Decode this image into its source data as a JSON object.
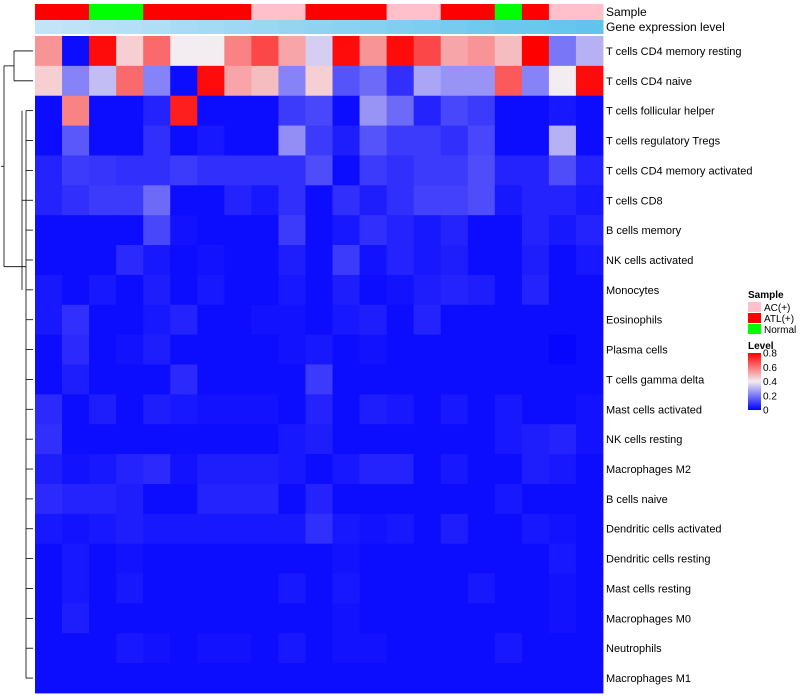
{
  "chart_data": {
    "type": "heatmap",
    "title": "",
    "annotation_tracks": [
      {
        "label": "Sample",
        "values": [
          "ATL(+)",
          "ATL(+)",
          "Normal",
          "Normal",
          "ATL(+)",
          "ATL(+)",
          "ATL(+)",
          "ATL(+)",
          "AC(+)",
          "AC(+)",
          "ATL(+)",
          "ATL(+)",
          "ATL(+)",
          "AC(+)",
          "AC(+)",
          "ATL(+)",
          "ATL(+)",
          "Normal",
          "ATL(+)",
          "AC(+)",
          "AC(+)"
        ]
      },
      {
        "label": "Gene expression level",
        "values": [
          0.05,
          0.1,
          0.15,
          0.2,
          0.25,
          0.3,
          0.35,
          0.4,
          0.45,
          0.5,
          0.55,
          0.6,
          0.65,
          0.7,
          0.75,
          0.8,
          0.85,
          0.9,
          0.92,
          0.95,
          1.0
        ]
      }
    ],
    "rows": [
      "T cells CD4 memory resting",
      "T cells CD4 naive",
      "T cells follicular helper",
      "T cells regulatory  Tregs",
      "T cells CD4 memory activated",
      "T cells CD8",
      "B cells memory",
      "NK cells activated",
      "Monocytes",
      "Eosinophils",
      "Plasma cells",
      "T cells gamma delta",
      "Mast cells activated",
      "NK cells resting",
      "Macrophages M2",
      "B cells naive",
      "Dendritic cells activated",
      "Dendritic cells resting",
      "Mast cells resting",
      "Macrophages M0",
      "Neutrophils",
      "Macrophages M1"
    ],
    "values": [
      [
        0.55,
        0.02,
        0.78,
        0.45,
        0.62,
        0.4,
        0.4,
        0.58,
        0.68,
        0.52,
        0.35,
        0.78,
        0.55,
        0.78,
        0.68,
        0.52,
        0.55,
        0.48,
        0.8,
        0.2,
        0.3
      ],
      [
        0.45,
        0.22,
        0.32,
        0.62,
        0.22,
        0.02,
        0.78,
        0.52,
        0.48,
        0.22,
        0.45,
        0.14,
        0.18,
        0.08,
        0.28,
        0.25,
        0.25,
        0.65,
        0.22,
        0.4,
        0.78
      ],
      [
        0.02,
        0.58,
        0.02,
        0.02,
        0.06,
        0.75,
        0.02,
        0.02,
        0.02,
        0.1,
        0.12,
        0.02,
        0.25,
        0.18,
        0.06,
        0.12,
        0.1,
        0.02,
        0.02,
        0.04,
        0.02
      ],
      [
        0.02,
        0.15,
        0.02,
        0.02,
        0.08,
        0.02,
        0.04,
        0.02,
        0.02,
        0.24,
        0.1,
        0.05,
        0.14,
        0.1,
        0.1,
        0.08,
        0.12,
        0.02,
        0.02,
        0.3,
        0.02
      ],
      [
        0.06,
        0.1,
        0.09,
        0.08,
        0.08,
        0.1,
        0.08,
        0.08,
        0.08,
        0.08,
        0.13,
        0.02,
        0.1,
        0.08,
        0.1,
        0.1,
        0.13,
        0.06,
        0.06,
        0.13,
        0.06
      ],
      [
        0.06,
        0.08,
        0.1,
        0.1,
        0.18,
        0.02,
        0.02,
        0.06,
        0.04,
        0.08,
        0.02,
        0.08,
        0.05,
        0.08,
        0.11,
        0.11,
        0.13,
        0.04,
        0.06,
        0.06,
        0.04
      ],
      [
        0.02,
        0.02,
        0.02,
        0.02,
        0.12,
        0.03,
        0.02,
        0.02,
        0.02,
        0.1,
        0.02,
        0.04,
        0.08,
        0.06,
        0.04,
        0.06,
        0.02,
        0.02,
        0.06,
        0.04,
        0.06
      ],
      [
        0.02,
        0.02,
        0.02,
        0.07,
        0.04,
        0.02,
        0.03,
        0.02,
        0.02,
        0.05,
        0.02,
        0.1,
        0.03,
        0.06,
        0.04,
        0.05,
        0.02,
        0.02,
        0.05,
        0.02,
        0.04
      ],
      [
        0.04,
        0.02,
        0.04,
        0.02,
        0.05,
        0.02,
        0.04,
        0.02,
        0.02,
        0.04,
        0.02,
        0.05,
        0.02,
        0.03,
        0.05,
        0.06,
        0.05,
        0.02,
        0.06,
        0.02,
        0.02
      ],
      [
        0.04,
        0.08,
        0.02,
        0.02,
        0.04,
        0.06,
        0.02,
        0.02,
        0.03,
        0.03,
        0.02,
        0.04,
        0.05,
        0.02,
        0.06,
        0.02,
        0.02,
        0.02,
        0.02,
        0.02,
        0.02
      ],
      [
        0.02,
        0.07,
        0.02,
        0.03,
        0.05,
        0.02,
        0.02,
        0.02,
        0.02,
        0.03,
        0.04,
        0.02,
        0.03,
        0.02,
        0.02,
        0.02,
        0.02,
        0.02,
        0.02,
        0.01,
        0.02
      ],
      [
        0.02,
        0.05,
        0.02,
        0.02,
        0.02,
        0.07,
        0.02,
        0.02,
        0.02,
        0.02,
        0.1,
        0.02,
        0.02,
        0.02,
        0.02,
        0.02,
        0.02,
        0.02,
        0.02,
        0.02,
        0.02
      ],
      [
        0.07,
        0.02,
        0.05,
        0.02,
        0.05,
        0.04,
        0.03,
        0.03,
        0.03,
        0.02,
        0.06,
        0.02,
        0.05,
        0.04,
        0.02,
        0.04,
        0.02,
        0.04,
        0.02,
        0.02,
        0.03
      ],
      [
        0.08,
        0.02,
        0.02,
        0.02,
        0.02,
        0.02,
        0.02,
        0.02,
        0.02,
        0.04,
        0.05,
        0.02,
        0.02,
        0.02,
        0.02,
        0.02,
        0.02,
        0.04,
        0.05,
        0.06,
        0.03
      ],
      [
        0.05,
        0.03,
        0.04,
        0.06,
        0.07,
        0.03,
        0.05,
        0.05,
        0.05,
        0.04,
        0.02,
        0.04,
        0.06,
        0.06,
        0.02,
        0.04,
        0.02,
        0.02,
        0.05,
        0.04,
        0.02
      ],
      [
        0.07,
        0.06,
        0.06,
        0.05,
        0.02,
        0.02,
        0.06,
        0.06,
        0.06,
        0.02,
        0.06,
        0.02,
        0.02,
        0.02,
        0.02,
        0.02,
        0.02,
        0.04,
        0.02,
        0.02,
        0.02
      ],
      [
        0.04,
        0.03,
        0.04,
        0.05,
        0.04,
        0.04,
        0.04,
        0.04,
        0.04,
        0.04,
        0.08,
        0.04,
        0.03,
        0.04,
        0.02,
        0.05,
        0.02,
        0.02,
        0.04,
        0.03,
        0.02
      ],
      [
        0.02,
        0.04,
        0.02,
        0.03,
        0.02,
        0.02,
        0.02,
        0.02,
        0.02,
        0.02,
        0.02,
        0.03,
        0.02,
        0.02,
        0.02,
        0.02,
        0.02,
        0.02,
        0.02,
        0.04,
        0.02
      ],
      [
        0.02,
        0.04,
        0.02,
        0.04,
        0.02,
        0.02,
        0.02,
        0.02,
        0.02,
        0.04,
        0.02,
        0.04,
        0.02,
        0.02,
        0.02,
        0.02,
        0.04,
        0.02,
        0.02,
        0.03,
        0.02
      ],
      [
        0.02,
        0.05,
        0.02,
        0.02,
        0.02,
        0.02,
        0.02,
        0.02,
        0.02,
        0.02,
        0.02,
        0.03,
        0.02,
        0.02,
        0.02,
        0.02,
        0.02,
        0.02,
        0.02,
        0.03,
        0.02
      ],
      [
        0.02,
        0.02,
        0.02,
        0.04,
        0.03,
        0.02,
        0.03,
        0.03,
        0.02,
        0.04,
        0.02,
        0.03,
        0.03,
        0.02,
        0.02,
        0.02,
        0.02,
        0.04,
        0.02,
        0.02,
        0.02
      ],
      [
        0.02,
        0.02,
        0.02,
        0.02,
        0.02,
        0.02,
        0.02,
        0.02,
        0.02,
        0.02,
        0.02,
        0.02,
        0.02,
        0.02,
        0.02,
        0.02,
        0.02,
        0.02,
        0.02,
        0.02,
        0.02
      ]
    ],
    "color_scale": {
      "min": 0,
      "max": 0.8,
      "stops": [
        {
          "value": 0.0,
          "color": "#0000ff"
        },
        {
          "value": 0.4,
          "color": "#f3ecf0"
        },
        {
          "value": 0.8,
          "color": "#ff0000"
        }
      ]
    },
    "sample_colors": {
      "AC(+)": "#ffc0cb",
      "ATL(+)": "#ff0000",
      "Normal": "#00ff00"
    },
    "expression_track_colors": {
      "low": "#c8e6f8",
      "high": "#62c4ec"
    },
    "legend": {
      "sample_title": "Sample",
      "sample_entries": [
        "AC(+)",
        "ATL(+)",
        "Normal"
      ],
      "level_title": "Level",
      "level_ticks": [
        "0.8",
        "0.6",
        "0.4",
        "0.2",
        "0"
      ],
      "level_tick_values": [
        0.8,
        0.6,
        0.4,
        0.2,
        0
      ],
      "placement": "right"
    },
    "dendrogram": {
      "side": "left",
      "clusters": "rows"
    }
  }
}
